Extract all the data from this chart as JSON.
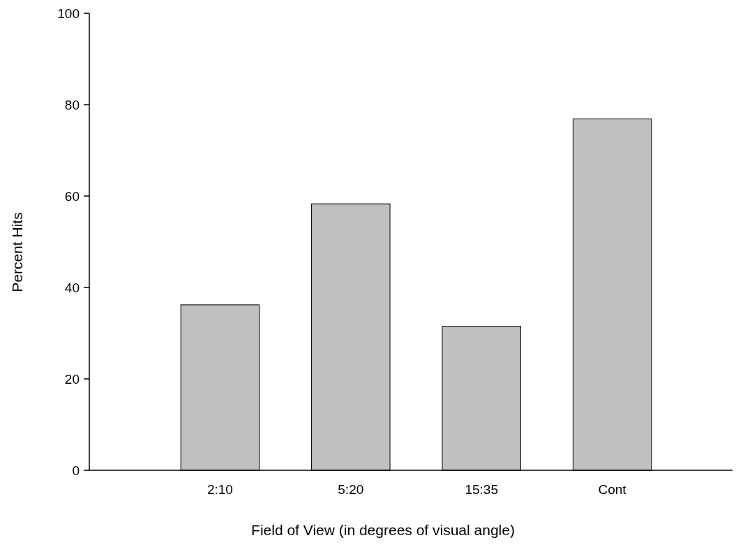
{
  "chart_data": {
    "type": "bar",
    "xlabel": "Field of View (in degrees of visual angle)",
    "ylabel": "Percent Hits",
    "categories": [
      "2:10",
      "5:20",
      "15:35",
      "Cont"
    ],
    "values": [
      36.2,
      58.3,
      31.5,
      76.9
    ],
    "color": "#c0c0c0",
    "ylim": [
      0,
      100
    ],
    "yticks": [
      0,
      20,
      40,
      60,
      80,
      100
    ],
    "grid": false
  }
}
